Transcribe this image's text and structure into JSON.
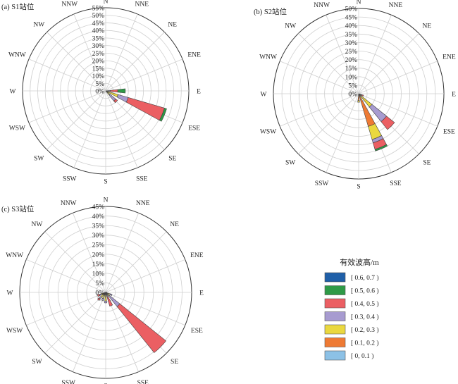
{
  "legend": {
    "title": "有效波高/m",
    "items": [
      {
        "label": "[ 0.6, 0.7 )",
        "color": "#1f5fa8"
      },
      {
        "label": "[ 0.5, 0.6 )",
        "color": "#2e9a47"
      },
      {
        "label": "[ 0.4, 0.5 )",
        "color": "#eb5f63"
      },
      {
        "label": "[ 0.3, 0.4 )",
        "color": "#a79bd0"
      },
      {
        "label": "[ 0.2, 0.3 )",
        "color": "#ead83f"
      },
      {
        "label": "[ 0.1, 0.2 )",
        "color": "#ee7a34"
      },
      {
        "label": "[ 0, 0.1 )",
        "color": "#8cc1e6"
      }
    ]
  },
  "chart_data": [
    {
      "type": "polar-bar",
      "title": "(a) S1站位",
      "directions": [
        "N",
        "NNE",
        "NE",
        "ENE",
        "E",
        "ESE",
        "SE",
        "SSE",
        "S",
        "SSW",
        "SW",
        "WSW",
        "W",
        "WNW",
        "NW",
        "NNW"
      ],
      "rmax": 55,
      "ticks": [
        "0%",
        "5%",
        "10%",
        "15%",
        "20%",
        "25%",
        "30%",
        "35%",
        "40%",
        "45%",
        "50%",
        "55%"
      ],
      "series": [
        {
          "name": "[ 0, 0.1 )",
          "values": [
            0,
            0,
            0,
            0,
            0,
            0,
            0,
            0,
            0,
            0,
            0,
            0,
            0,
            0,
            0,
            0
          ]
        },
        {
          "name": "[ 0.1, 0.2 )",
          "values": [
            0,
            0,
            0,
            0,
            0,
            0.5,
            0.5,
            0,
            0,
            0,
            0,
            0,
            0,
            0,
            0,
            0
          ]
        },
        {
          "name": "[ 0.2, 0.3 )",
          "values": [
            0,
            0,
            0,
            0,
            2,
            8,
            3,
            0,
            0,
            0,
            0,
            0,
            0,
            0,
            0,
            0
          ]
        },
        {
          "name": "[ 0.3, 0.4 )",
          "values": [
            0,
            0,
            0,
            0,
            1,
            7,
            5,
            0,
            0,
            0,
            0,
            0,
            0,
            0,
            0,
            0
          ]
        },
        {
          "name": "[ 0.4, 0.5 )",
          "values": [
            0,
            0,
            0,
            0,
            5,
            25,
            1.5,
            0,
            0,
            0,
            0,
            0,
            0,
            0,
            0,
            0
          ]
        },
        {
          "name": "[ 0.5, 0.6 )",
          "values": [
            0,
            0,
            0,
            0,
            5,
            1.5,
            0,
            0,
            0,
            0,
            0,
            0,
            0,
            0,
            0,
            0
          ]
        },
        {
          "name": "[ 0.6, 0.7 )",
          "values": [
            0,
            0,
            0,
            0,
            0,
            0,
            0,
            0,
            0,
            0,
            0,
            0,
            0,
            0,
            0,
            0
          ]
        }
      ]
    },
    {
      "type": "polar-bar",
      "title": "(b) S2站位",
      "directions": [
        "N",
        "NNE",
        "NE",
        "ENE",
        "E",
        "ESE",
        "SE",
        "SSE",
        "S",
        "SSW",
        "SW",
        "WSW",
        "W",
        "WNW",
        "NW",
        "NNW"
      ],
      "rmax": 50,
      "ticks": [
        "0%",
        "5%",
        "10%",
        "15%",
        "20%",
        "25%",
        "30%",
        "35%",
        "40%",
        "45%",
        "50%"
      ],
      "series": [
        {
          "name": "[ 0, 0.1 )",
          "values": [
            0,
            0,
            0,
            0,
            0,
            0,
            0,
            0,
            0,
            0,
            0,
            0,
            0,
            0,
            0,
            0
          ]
        },
        {
          "name": "[ 0.1, 0.2 )",
          "values": [
            0,
            0,
            0,
            0,
            0,
            0,
            0,
            20,
            4,
            0,
            0,
            0,
            0,
            0,
            0,
            0
          ]
        },
        {
          "name": "[ 0.2, 0.3 )",
          "values": [
            0,
            0,
            0,
            0,
            0,
            0,
            10,
            8,
            1,
            0,
            0,
            0,
            0,
            0,
            0,
            0
          ]
        },
        {
          "name": "[ 0.3, 0.4 )",
          "values": [
            0,
            0,
            0,
            0,
            0,
            2,
            11,
            2,
            0,
            0,
            0,
            0,
            0,
            0,
            0,
            0
          ]
        },
        {
          "name": "[ 0.4, 0.5 )",
          "values": [
            0,
            0,
            0,
            0,
            0,
            1,
            6,
            4,
            0,
            0,
            0,
            0,
            0,
            0,
            0,
            0
          ]
        },
        {
          "name": "[ 0.5, 0.6 )",
          "values": [
            0,
            0,
            0,
            0,
            0,
            0,
            0,
            1,
            0,
            0,
            0,
            0,
            0,
            0,
            0,
            0
          ]
        },
        {
          "name": "[ 0.6, 0.7 )",
          "values": [
            0,
            0,
            0,
            0,
            0,
            0,
            0,
            0,
            0,
            0,
            0,
            0,
            0,
            0,
            0,
            0
          ]
        }
      ]
    },
    {
      "type": "polar-bar",
      "title": "(c) S3站位",
      "directions": [
        "N",
        "NNE",
        "NE",
        "ENE",
        "E",
        "ESE",
        "SE",
        "SSE",
        "S",
        "SSW",
        "SW",
        "WSW",
        "W",
        "WNW",
        "NW",
        "NNW"
      ],
      "rmax": 45,
      "ticks": [
        "0%",
        "5%",
        "10%",
        "15%",
        "20%",
        "25%",
        "30%",
        "35%",
        "40%",
        "45%"
      ],
      "series": [
        {
          "name": "[ 0, 0.1 )",
          "values": [
            0,
            0,
            0,
            0.5,
            0.5,
            0.5,
            0.5,
            0.5,
            0.5,
            0.5,
            0.5,
            0.5,
            0.5,
            0,
            0,
            0
          ]
        },
        {
          "name": "[ 0.1, 0.2 )",
          "values": [
            0,
            0,
            0,
            0,
            0,
            0,
            0,
            0,
            1,
            1,
            1,
            1,
            0,
            0,
            0,
            0
          ]
        },
        {
          "name": "[ 0.2, 0.3 )",
          "values": [
            0,
            0,
            0,
            0,
            0,
            2,
            2,
            1,
            3,
            2,
            2,
            1,
            0,
            0,
            0,
            0
          ]
        },
        {
          "name": "[ 0.3, 0.4 )",
          "values": [
            0,
            0,
            0,
            0,
            0,
            1,
            7,
            1,
            1,
            1,
            1,
            1,
            0,
            0,
            0,
            0
          ]
        },
        {
          "name": "[ 0.4, 0.5 )",
          "values": [
            0,
            0,
            0,
            0,
            0,
            0,
            31,
            5,
            0,
            0,
            1,
            1,
            0,
            0,
            0,
            0
          ]
        },
        {
          "name": "[ 0.5, 0.6 )",
          "values": [
            0,
            0,
            0,
            0,
            0,
            0,
            0,
            0,
            0,
            0,
            0,
            0,
            0,
            0,
            0,
            0
          ]
        },
        {
          "name": "[ 0.6, 0.7 )",
          "values": [
            0,
            0,
            0,
            0,
            0,
            0,
            0,
            0,
            0,
            0,
            0,
            0,
            0,
            0,
            0,
            0
          ]
        }
      ]
    }
  ]
}
